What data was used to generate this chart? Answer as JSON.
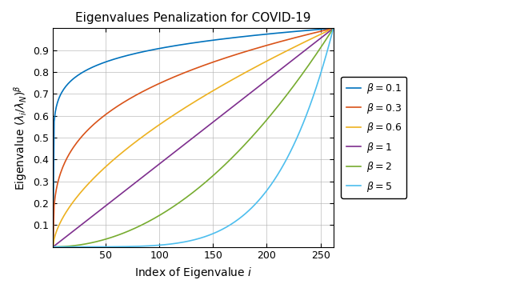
{
  "title": "Eigenvalues Penalization for COVID-19",
  "xlabel": "Index of Eigenvalue $i$",
  "ylabel": "Eigenvalue $(\\lambda_i/\\lambda_N)^{\\beta}$",
  "N": 262,
  "betas": [
    0.1,
    0.3,
    0.6,
    1,
    2,
    5
  ],
  "beta_labels": [
    "$\\beta = 0.1$",
    "$\\beta = 0.3$",
    "$\\beta = 0.6$",
    "$\\beta = 1$",
    "$\\beta = 2$",
    "$\\beta = 5$"
  ],
  "colors": [
    "#0072BD",
    "#D95319",
    "#EDB120",
    "#7E2F8E",
    "#77AC30",
    "#4DBEEE"
  ],
  "xlim": [
    1,
    262
  ],
  "ylim": [
    0,
    1.0
  ],
  "xticks": [
    50,
    100,
    150,
    200,
    250
  ],
  "yticks": [
    0.1,
    0.2,
    0.3,
    0.4,
    0.5,
    0.6,
    0.7,
    0.8,
    0.9
  ],
  "figsize": [
    6.4,
    3.65
  ],
  "dpi": 100,
  "background_color": "#ffffff",
  "grid_color": "#b0b0b0",
  "linewidth": 1.2
}
